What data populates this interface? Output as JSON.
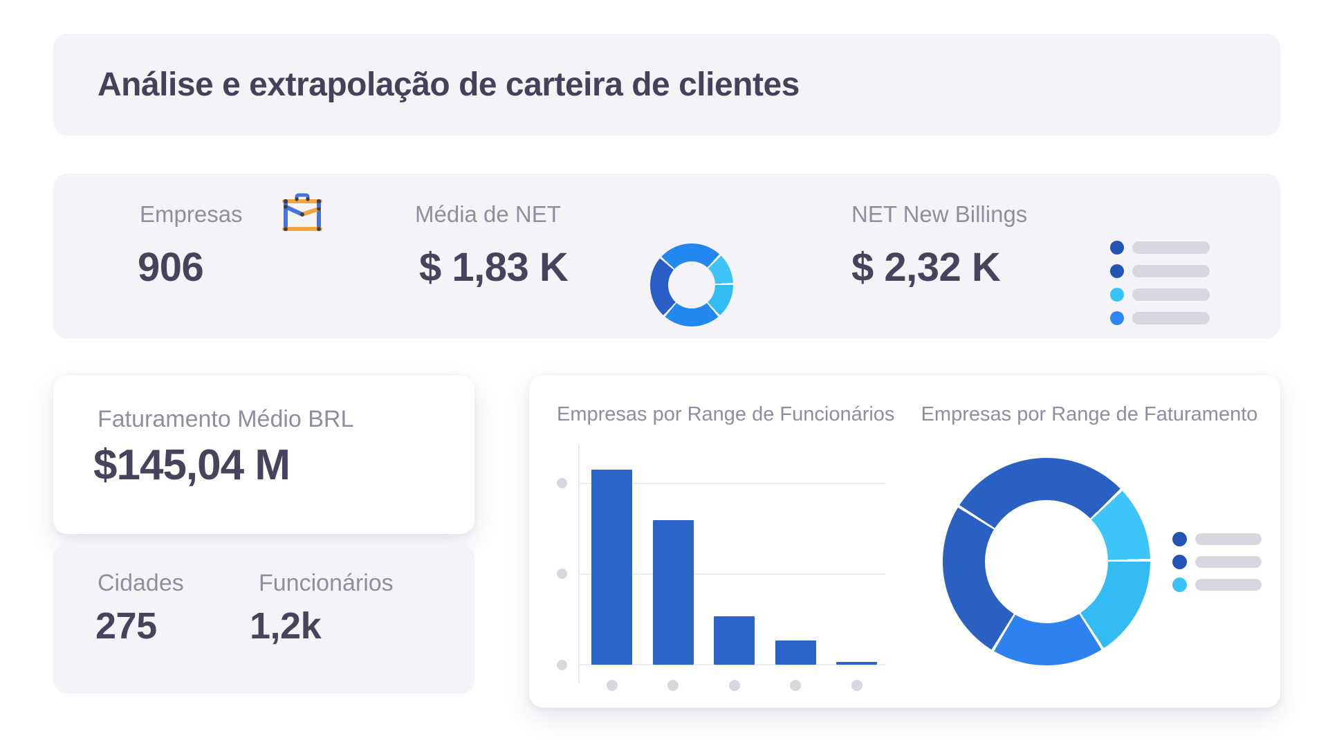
{
  "page": {
    "background": "#ffffff"
  },
  "palette": {
    "card_gray": "#f4f4f8",
    "text_dark": "#45445c",
    "text_label": "#8f8e9e",
    "redacted_gray": "#d8d6de",
    "grid_line": "#ececf1",
    "bar_blue": "#2b64c8",
    "dark_blue": "#2a60c2",
    "bright_blue": "#2e82ef",
    "cyan": "#3bc5f9",
    "icon_orange": "#f2a43d",
    "icon_blue": "#4673d9"
  },
  "header": {
    "title": "Análise e extrapolação de carteira de clientes"
  },
  "kpis": {
    "empresas": {
      "label": "Empresas",
      "value": "906",
      "icon": "briefcase-icon"
    },
    "media_net": {
      "label": "Média de NET",
      "value": "$ 1,83 K",
      "icon": "donut-gauge-icon"
    },
    "net_new_billings": {
      "label": "NET New Billings",
      "value": "$ 2,32 K",
      "icon": "legend-list-icon"
    }
  },
  "faturamento": {
    "label": "Faturamento Médio BRL",
    "value": "$145,04 M"
  },
  "secondary": {
    "cidades": {
      "label": "Cidades",
      "value": "275"
    },
    "funcionarios": {
      "label": "Funcionários",
      "value": "1,2k"
    }
  },
  "icons": {
    "kpi_donut": {
      "background": "#f4f4f8",
      "segments": [
        {
          "from": 0,
          "to": 45,
          "color": "#2387f0",
          "gap_after": true
        },
        {
          "from": 45,
          "to": 90,
          "color": "#40c4f8",
          "gap_after": true
        },
        {
          "from": 90,
          "to": 140,
          "color": "#33bbf3",
          "gap_after": true
        },
        {
          "from": 140,
          "to": 223,
          "color": "#2387f0",
          "gap_after": true
        },
        {
          "from": 223,
          "to": 313,
          "color": "#2b5dc6",
          "gap_after": true
        },
        {
          "from": 313,
          "to": 360,
          "color": "#2387f0",
          "gap_after": false
        }
      ]
    },
    "billing_legend": {
      "dot_colors": [
        "#2453b6",
        "#2453b6",
        "#38c3f9",
        "#2e86f5"
      ],
      "bar_color": "#d8d6de"
    }
  },
  "chart_data": [
    {
      "type": "bar",
      "title": "Empresas por Range de Funcionários",
      "categories": [
        "●",
        "●",
        "●",
        "●",
        "●"
      ],
      "tick_labels_hidden_as_dots": true,
      "values": [
        2.15,
        1.59,
        0.53,
        0.27,
        0.03
      ],
      "value_unit": "gridline-intervals (axis labels hidden)",
      "xlabel": "",
      "ylabel": "",
      "ylim": [
        0,
        2.4
      ],
      "gridlines_y": [
        1,
        2
      ],
      "grid": true,
      "bar_color": "#2b64c8"
    },
    {
      "type": "donut",
      "title": "Empresas por Range de Faturamento",
      "labels_hidden": true,
      "segments": [
        {
          "start_deg": 303,
          "end_deg": 47,
          "sweep_deg": 104,
          "share_pct": 28.9,
          "color": "#2a60c2"
        },
        {
          "start_deg": 47,
          "end_deg": 90,
          "sweep_deg": 43,
          "share_pct": 11.9,
          "color": "#3bc5f9"
        },
        {
          "start_deg": 90,
          "end_deg": 148,
          "sweep_deg": 58,
          "share_pct": 16.1,
          "color": "#33bbf3"
        },
        {
          "start_deg": 148,
          "end_deg": 212,
          "sweep_deg": 64,
          "share_pct": 17.8,
          "color": "#2e82ef"
        },
        {
          "start_deg": 212,
          "end_deg": 303,
          "sweep_deg": 91,
          "share_pct": 25.3,
          "color": "#2a60c2"
        }
      ],
      "segments_css": [
        {
          "from": 0,
          "to": 47,
          "color": "#2a60c2",
          "gap_after": true
        },
        {
          "from": 47,
          "to": 90,
          "color": "#3bc5f9",
          "gap_after": true
        },
        {
          "from": 90,
          "to": 148,
          "color": "#33bbf3",
          "gap_after": true
        },
        {
          "from": 148,
          "to": 212,
          "color": "#2e82ef",
          "gap_after": true
        },
        {
          "from": 212,
          "to": 303,
          "color": "#2a60c2",
          "gap_after": true
        },
        {
          "from": 303,
          "to": 360,
          "color": "#2a60c2",
          "gap_after": false
        }
      ],
      "legend": {
        "position": "right",
        "labels_hidden_as_bars": true,
        "dot_colors": [
          "#2453b6",
          "#2453b6",
          "#38c3f9"
        ]
      }
    }
  ]
}
